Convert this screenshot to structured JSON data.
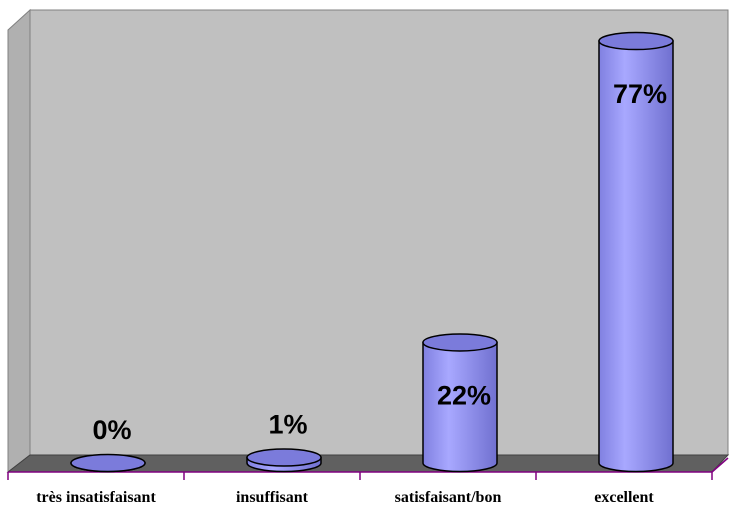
{
  "chart_data": {
    "type": "bar",
    "categories": [
      "très insatisfaisant",
      "insuffisant",
      "satisfaisant/bon",
      "excellent"
    ],
    "values": [
      0,
      1,
      22,
      77
    ],
    "value_labels": [
      "0%",
      "1%",
      "22%",
      "77%"
    ],
    "color": "#9999ff"
  }
}
